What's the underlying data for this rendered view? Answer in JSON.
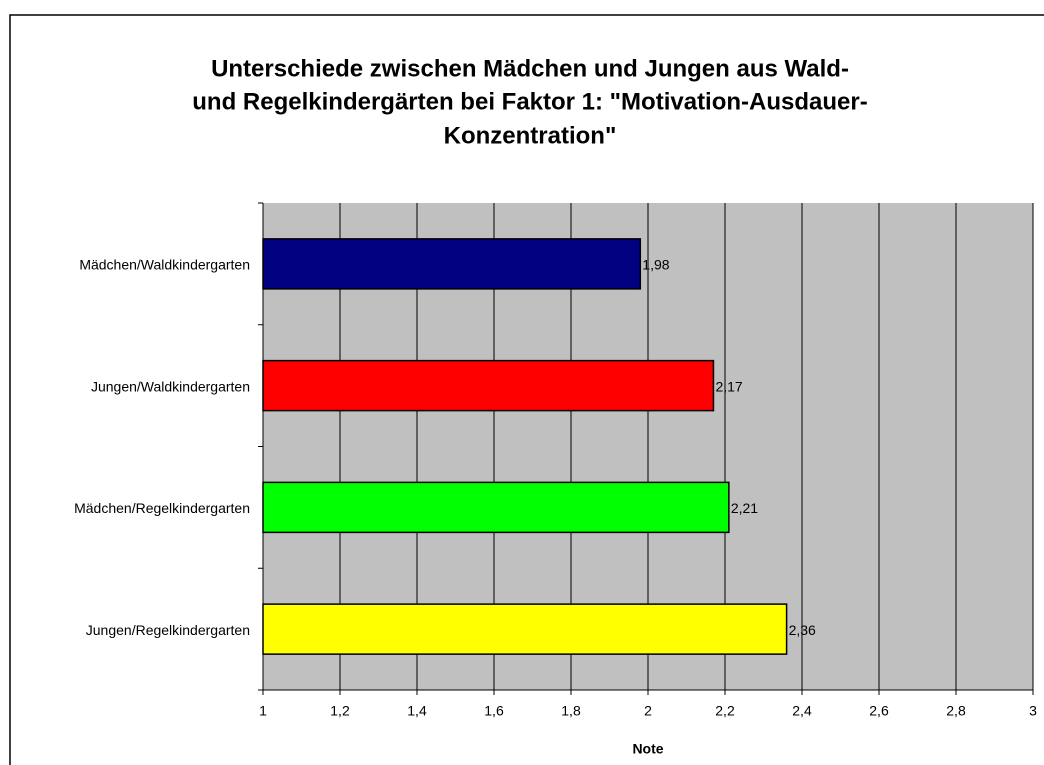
{
  "chart_data": {
    "type": "bar",
    "orientation": "horizontal",
    "title": [
      "Unterschiede zwischen Mädchen und Jungen aus Wald-",
      "und Regelkindergärten bei Faktor 1: \"Motivation-Ausdauer-",
      "Konzentration\""
    ],
    "x_label": "Note",
    "categories": [
      "Mädchen/Waldkindergarten",
      "Jungen/Waldkindergarten",
      "Mädchen/Regelkindergarten",
      "Jungen/Regelkindergarten"
    ],
    "values": [
      1.98,
      2.17,
      2.21,
      2.36
    ],
    "value_labels": [
      "1,98",
      "2,17",
      "2,21",
      "2,36"
    ],
    "colors": [
      "#000080",
      "#ff0000",
      "#00ff00",
      "#ffff00"
    ],
    "xlim": [
      1,
      3
    ],
    "xticks": [
      1,
      {
        "value": 1.2,
        "label": "1,2"
      },
      {
        "value": 1.4,
        "label": "1,4"
      },
      {
        "value": 1.6,
        "label": "1,6"
      },
      {
        "value": 1.8,
        "label": "1,8"
      },
      2,
      {
        "value": 2.2,
        "label": "2,2"
      },
      {
        "value": 2.4,
        "label": "2,4"
      },
      {
        "value": 2.6,
        "label": "2,6"
      },
      {
        "value": 2.8,
        "label": "2,8"
      },
      3
    ],
    "grid": true,
    "plot_background": "#c0c0c0"
  }
}
